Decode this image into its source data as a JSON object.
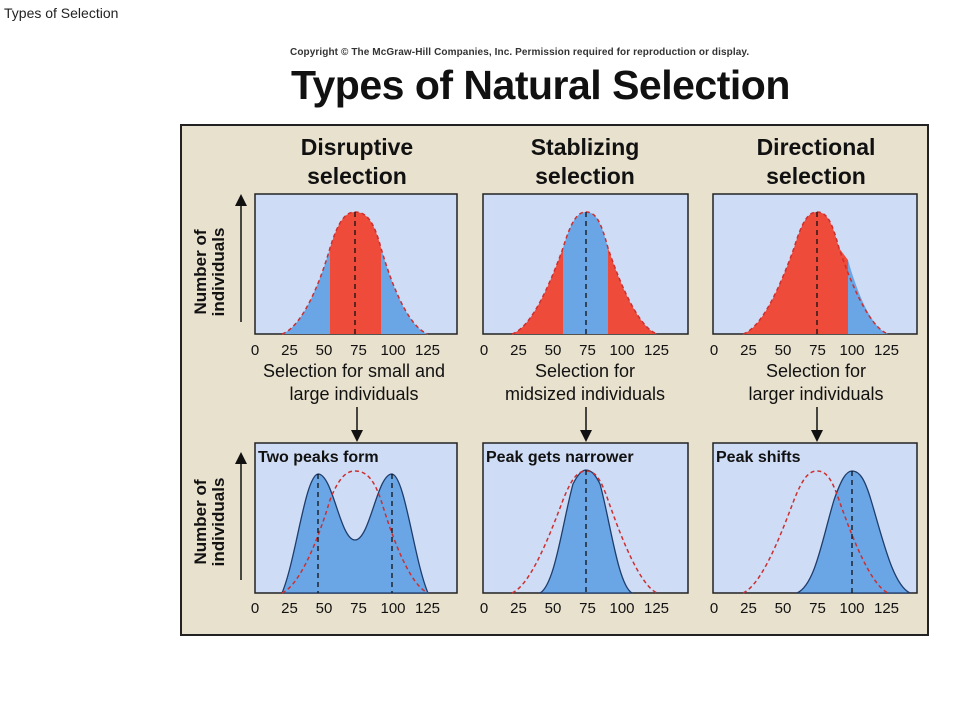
{
  "page": {
    "title": "Types of Selection"
  },
  "figure": {
    "copyright": "Copyright © The McGraw-Hill Companies, Inc. Permission required for reproduction or display.",
    "title": "Types of Natural Selection",
    "y_axis_label_line1": "Number of",
    "y_axis_label_line2": "individuals",
    "tick_labels": [
      "0",
      "25",
      "50",
      "75",
      "100",
      "125"
    ],
    "colors": {
      "panel_bg": "#e8e1ce",
      "plot_bg": "#cfdcf5",
      "selected_red": "#ee4b3b",
      "survivor_blue": "#6aa6e6",
      "dashed_red": "#cc2f2f"
    },
    "columns": [
      {
        "heading_line1": "Disruptive",
        "heading_line2": "selection",
        "top_caption_line1": "Selection for small and",
        "top_caption_line2": "large individuals",
        "bottom_label": "Two peaks form"
      },
      {
        "heading_line1": "Stablizing",
        "heading_line2": "selection",
        "top_caption_line1": "Selection for",
        "top_caption_line2": "midsized individuals",
        "bottom_label": "Peak gets narrower"
      },
      {
        "heading_line1": "Directional",
        "heading_line2": "selection",
        "top_caption_line1": "Selection for",
        "top_caption_line2": "larger individuals",
        "bottom_label": "Peak shifts"
      }
    ]
  }
}
